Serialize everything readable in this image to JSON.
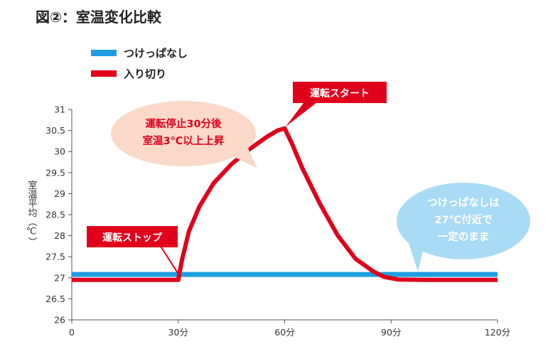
{
  "title": "図②：室温変化比較",
  "colors": {
    "continuous": "#1e9ee0",
    "onoff": "#e0001b",
    "red_bubble": "#fbd9c8",
    "blue_bubble": "#a9dcf4"
  },
  "annotations": {
    "stop_label": "運転ストップ",
    "start_label": "運転スタート",
    "red_bubble_lines": [
      "運転停止30分後",
      "室温3℃以上上昇"
    ],
    "blue_bubble_lines": [
      "つけっぱなしは",
      "27℃付近で",
      "一定のまま"
    ]
  },
  "chart_data": {
    "type": "line",
    "title": "図②：室温変化比較",
    "ylabel": "室温平均（℃）",
    "xlabel": "",
    "xlim": [
      0,
      120
    ],
    "ylim": [
      26,
      31
    ],
    "x_ticks": [
      {
        "value": 0,
        "label": "0"
      },
      {
        "value": 30,
        "label": "30分"
      },
      {
        "value": 60,
        "label": "60分"
      },
      {
        "value": 90,
        "label": "90分"
      },
      {
        "value": 120,
        "label": "120分"
      }
    ],
    "y_ticks": [
      {
        "value": 26,
        "label": "26"
      },
      {
        "value": 26.5,
        "label": "26.5"
      },
      {
        "value": 27,
        "label": "27"
      },
      {
        "value": 27.5,
        "label": "27.5"
      },
      {
        "value": 28,
        "label": "28"
      },
      {
        "value": 28.5,
        "label": "28.5"
      },
      {
        "value": 29,
        "label": "29"
      },
      {
        "value": 29.5,
        "label": "29.5"
      },
      {
        "value": 30,
        "label": "30"
      },
      {
        "value": 30.5,
        "label": "30.5"
      },
      {
        "value": 31,
        "label": "31"
      }
    ],
    "grid": false,
    "legend": "top-left",
    "series": [
      {
        "name": "つけっぱなし",
        "color": "#1e9ee0",
        "x": [
          0,
          30,
          60,
          90,
          120
        ],
        "y": [
          27.08,
          27.08,
          27.08,
          27.08,
          27.08
        ]
      },
      {
        "name": "入り切り",
        "color": "#e0001b",
        "x": [
          0,
          30,
          31,
          33,
          36,
          40,
          45,
          50,
          55,
          58,
          60,
          62,
          65,
          70,
          75,
          80,
          85,
          88,
          92,
          100,
          120
        ],
        "y": [
          26.95,
          26.95,
          27.4,
          28.1,
          28.7,
          29.25,
          29.7,
          30.05,
          30.35,
          30.5,
          30.55,
          30.2,
          29.6,
          28.75,
          28.0,
          27.45,
          27.15,
          27.02,
          26.96,
          26.95,
          26.95
        ]
      }
    ]
  }
}
